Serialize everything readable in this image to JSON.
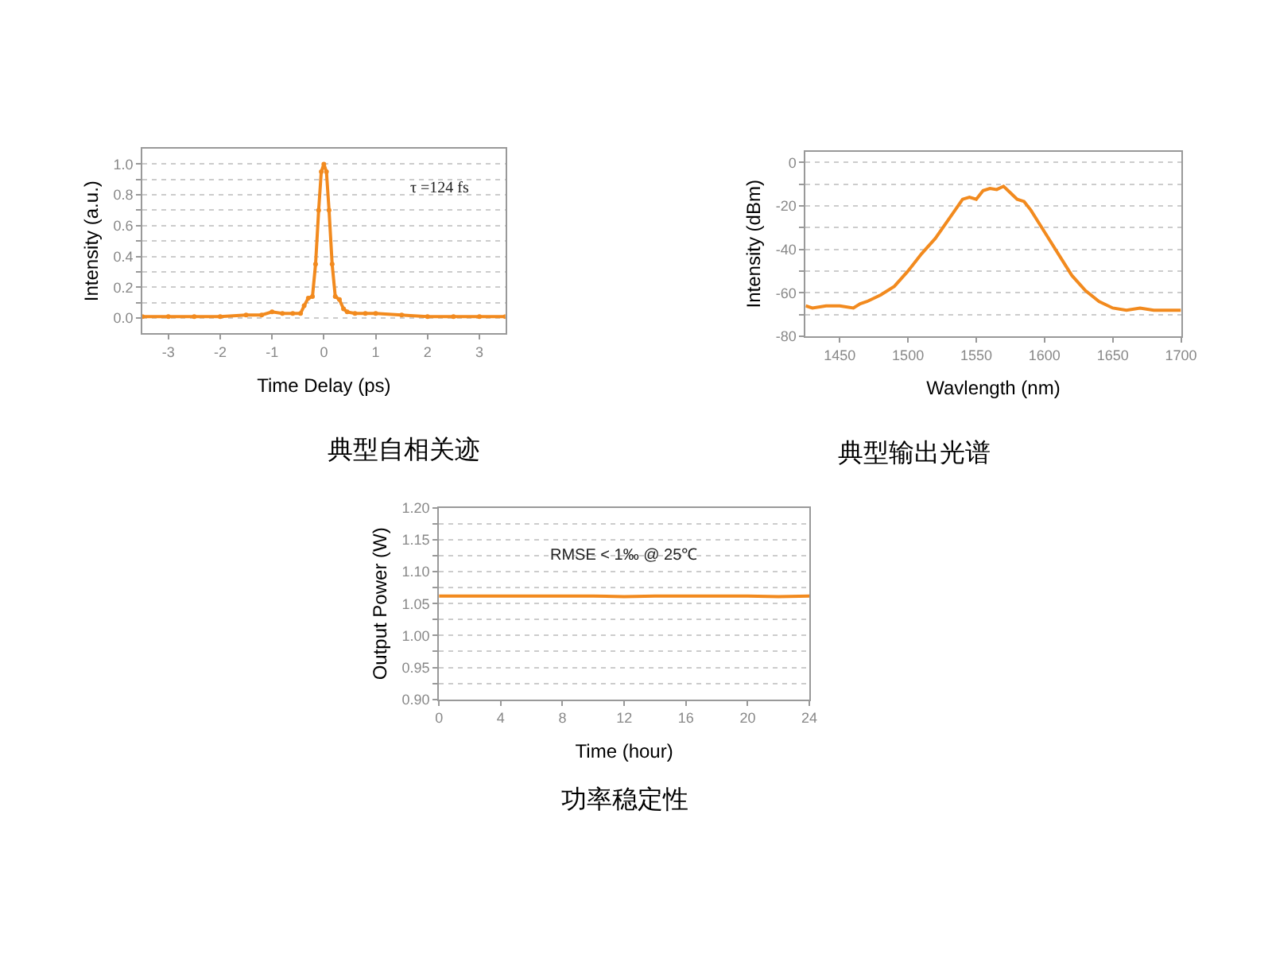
{
  "chart_data": [
    {
      "type": "line",
      "title": "典型自相关迹",
      "xlabel": "Time Delay (ps)",
      "ylabel": "Intensity (a.u.)",
      "annotations": [
        "τ =124 fs"
      ],
      "marker": "circle",
      "grid": "y",
      "x": [
        -3.5,
        -3,
        -2.5,
        -2,
        -1.5,
        -1.2,
        -1,
        -0.8,
        -0.6,
        -0.45,
        -0.38,
        -0.3,
        -0.22,
        -0.16,
        -0.1,
        -0.05,
        0,
        0.05,
        0.1,
        0.16,
        0.22,
        0.3,
        0.38,
        0.45,
        0.6,
        0.8,
        1,
        1.5,
        2,
        2.5,
        3,
        3.5
      ],
      "series": [
        {
          "color": "#f28a1e",
          "values": [
            0.01,
            0.01,
            0.01,
            0.01,
            0.02,
            0.02,
            0.04,
            0.03,
            0.03,
            0.03,
            0.08,
            0.13,
            0.14,
            0.35,
            0.7,
            0.95,
            1.0,
            0.95,
            0.7,
            0.35,
            0.14,
            0.12,
            0.06,
            0.04,
            0.03,
            0.03,
            0.03,
            0.02,
            0.01,
            0.01,
            0.01,
            0.01
          ]
        }
      ],
      "xlim": [
        -3.5,
        3.5
      ],
      "xticks": [
        -3,
        -2,
        -1,
        0,
        1,
        2,
        3
      ],
      "ylim": [
        -0.1,
        1.1
      ],
      "yticks": [
        {
          "value": 0,
          "label": "0.0"
        },
        {
          "value": 0.1,
          "label": null
        },
        {
          "value": 0.2,
          "label": "0.2"
        },
        {
          "value": 0.3,
          "label": null
        },
        {
          "value": 0.4,
          "label": "0.4"
        },
        {
          "value": 0.5,
          "label": null
        },
        {
          "value": 0.6,
          "label": "0.6"
        },
        {
          "value": 0.7,
          "label": null
        },
        {
          "value": 0.8,
          "label": "0.8"
        },
        {
          "value": 0.9,
          "label": null
        },
        {
          "value": 1,
          "label": "1.0"
        }
      ]
    },
    {
      "type": "line",
      "title": "典型输出光谱",
      "xlabel": "Wavlength (nm)",
      "ylabel": "Intensity (dBm)",
      "grid": "y",
      "x": [
        1425,
        1430,
        1440,
        1450,
        1460,
        1465,
        1470,
        1480,
        1490,
        1500,
        1510,
        1520,
        1530,
        1540,
        1545,
        1550,
        1555,
        1560,
        1565,
        1570,
        1575,
        1580,
        1585,
        1590,
        1600,
        1610,
        1620,
        1630,
        1640,
        1650,
        1660,
        1670,
        1680,
        1690,
        1700
      ],
      "series": [
        {
          "color": "#f28a1e",
          "values": [
            -66,
            -67,
            -66,
            -66,
            -67,
            -65,
            -64,
            -61,
            -57,
            -50,
            -42,
            -35,
            -26,
            -17,
            -16,
            -17,
            -13,
            -12,
            -12.5,
            -11,
            -14,
            -17,
            -18,
            -22,
            -32,
            -42,
            -52,
            -59,
            -64,
            -67,
            -68,
            -67,
            -68,
            -68,
            -68
          ]
        }
      ],
      "xlim": [
        1425,
        1700
      ],
      "xticks": [
        1450,
        1500,
        1550,
        1600,
        1650,
        1700
      ],
      "ylim": [
        -80,
        5
      ],
      "yticks": [
        -80,
        {
          "value": -70,
          "label": null
        },
        -60,
        {
          "value": -50,
          "label": null
        },
        -40,
        {
          "value": -30,
          "label": null
        },
        -20,
        {
          "value": -10,
          "label": null
        },
        0
      ]
    },
    {
      "type": "line",
      "title": "功率稳定性",
      "xlabel": "Time (hour)",
      "ylabel": "Output Power (W)",
      "annotations": [
        "RMSE < 1‰ @ 25℃"
      ],
      "grid": "y",
      "x": [
        0,
        2,
        4,
        6,
        8,
        10,
        12,
        14,
        16,
        18,
        20,
        22,
        24
      ],
      "series": [
        {
          "color": "#f28a1e",
          "values": [
            1.062,
            1.062,
            1.062,
            1.062,
            1.062,
            1.062,
            1.061,
            1.062,
            1.062,
            1.062,
            1.062,
            1.061,
            1.062
          ]
        }
      ],
      "xlim": [
        0,
        24
      ],
      "xticks": [
        0,
        4,
        8,
        12,
        16,
        20,
        24
      ],
      "ylim": [
        0.9,
        1.2
      ],
      "yticks": [
        {
          "value": 0.9,
          "label": "0.90"
        },
        {
          "value": 0.925,
          "label": null
        },
        0.95,
        {
          "value": 0.975,
          "label": null
        },
        {
          "value": 1,
          "label": "1.00"
        },
        {
          "value": 1.025,
          "label": null
        },
        1.05,
        {
          "value": 1.075,
          "label": null
        },
        {
          "value": 1.1,
          "label": "1.10"
        },
        {
          "value": 1.125,
          "label": null
        },
        1.15,
        {
          "value": 1.175,
          "label": null
        },
        {
          "value": 1.2,
          "label": "1.20"
        }
      ]
    }
  ]
}
